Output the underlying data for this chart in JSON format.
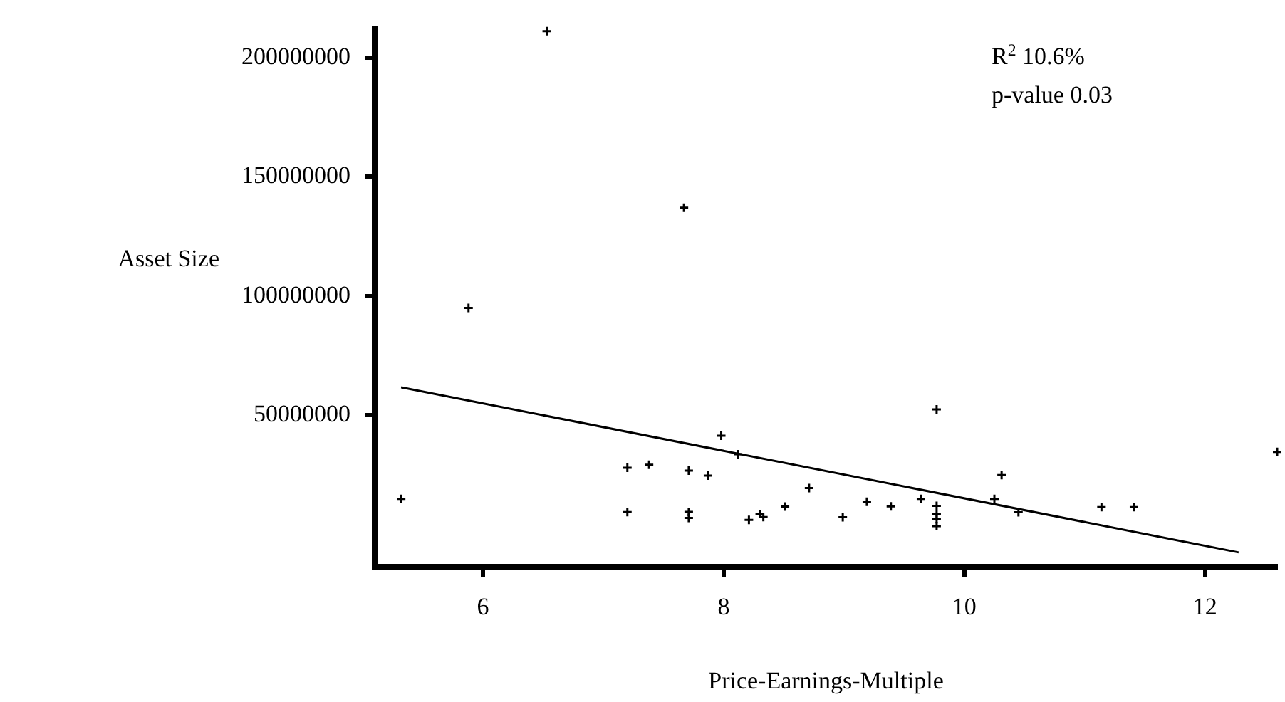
{
  "chart_data": {
    "type": "scatter",
    "xlabel": "Price-Earnings-Multiple",
    "ylabel": "Asset Size",
    "annotations": [
      "R$^{2}$ 10.6%",
      "p-value 0.03"
    ],
    "xlim": [
      5.1,
      12.6
    ],
    "ylim": [
      -13400000,
      212000000
    ],
    "xticks": [
      6,
      8,
      10,
      12
    ],
    "yticks": [
      50000000,
      100000000,
      150000000,
      200000000
    ],
    "grid": false,
    "legend": false,
    "series": [
      {
        "type": "scatter",
        "color": "#000000",
        "marker": "cross",
        "x": [
          6.53,
          7.67,
          5.88,
          5.32,
          7.98,
          8.12,
          7.2,
          7.38,
          7.71,
          7.87,
          8.71,
          7.2,
          7.71,
          7.71,
          8.21,
          8.3,
          8.33,
          8.51,
          8.99,
          9.19,
          9.39,
          9.64,
          9.77,
          9.77,
          9.77,
          9.77,
          9.77,
          10.25,
          10.31,
          10.45,
          11.14,
          11.41,
          12.6
        ],
        "values": [
          211000000,
          137000000,
          95000000,
          15000000,
          41500000,
          33700000,
          28100000,
          29300000,
          26900000,
          24800000,
          19600000,
          9500000,
          9600000,
          7000000,
          6200000,
          8700000,
          7400000,
          11800000,
          7300000,
          13800000,
          11900000,
          15000000,
          52500000,
          12100000,
          8700000,
          6500000,
          3600000,
          15000000,
          25000000,
          9400000,
          11600000,
          11600000,
          34700000
        ]
      },
      {
        "type": "line",
        "color": "#000000",
        "marker": "none",
        "x": [
          5.32,
          12.28
        ],
        "values": [
          61800000,
          -7400000
        ]
      }
    ]
  }
}
